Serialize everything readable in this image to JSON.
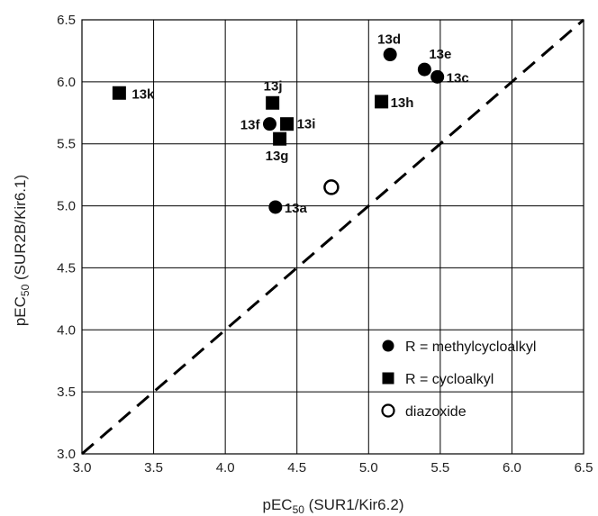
{
  "chart_data": {
    "type": "scatter",
    "xlabel": {
      "main": "pEC",
      "sub": "50",
      "rest": " (SUR1/Kir6.2)"
    },
    "ylabel": {
      "main": "pEC",
      "sub": "50",
      "rest": " (SUR2B/Kir6.1)"
    },
    "xlim": [
      3.0,
      6.5
    ],
    "ylim": [
      3.0,
      6.5
    ],
    "xticks": [
      "3.0",
      "3.5",
      "4.0",
      "4.5",
      "5.0",
      "5.5",
      "6.0",
      "6.5"
    ],
    "yticks": [
      "3.0",
      "3.5",
      "4.0",
      "4.5",
      "5.0",
      "5.5",
      "6.0",
      "6.5"
    ],
    "grid": true,
    "identity_line": {
      "style": "dashed",
      "from": [
        3.0,
        3.0
      ],
      "to": [
        6.5,
        6.5
      ]
    },
    "legend_position": "bottom-right",
    "series": [
      {
        "name": "R = methylcycloalkyl",
        "marker": "filled-circle",
        "points": [
          {
            "label": "13a",
            "x": 4.35,
            "y": 4.99
          },
          {
            "label": "13c",
            "x": 5.48,
            "y": 6.04
          },
          {
            "label": "13d",
            "x": 5.15,
            "y": 6.22
          },
          {
            "label": "13e",
            "x": 5.39,
            "y": 6.1
          },
          {
            "label": "13f",
            "x": 4.31,
            "y": 5.66
          }
        ]
      },
      {
        "name": "R = cycloalkyl",
        "marker": "filled-square",
        "points": [
          {
            "label": "13g",
            "x": 4.38,
            "y": 5.54
          },
          {
            "label": "13h",
            "x": 5.09,
            "y": 5.84
          },
          {
            "label": "13i",
            "x": 4.43,
            "y": 5.66
          },
          {
            "label": "13j",
            "x": 4.33,
            "y": 5.83
          },
          {
            "label": "13k",
            "x": 3.26,
            "y": 5.91
          }
        ]
      },
      {
        "name": "diazoxide",
        "marker": "open-circle",
        "points": [
          {
            "label": "",
            "x": 4.74,
            "y": 5.15
          }
        ]
      }
    ]
  }
}
